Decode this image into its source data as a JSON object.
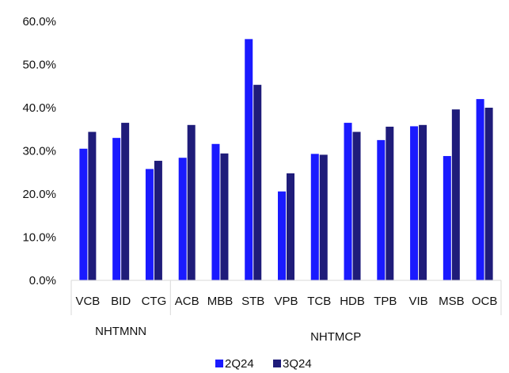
{
  "chart_data": {
    "type": "bar",
    "title": "",
    "xlabel": "",
    "ylabel": "",
    "ylim": [
      0,
      0.6
    ],
    "yticks": [
      "0.0%",
      "10.0%",
      "20.0%",
      "30.0%",
      "40.0%",
      "50.0%",
      "60.0%"
    ],
    "categories": [
      "VCB",
      "BID",
      "CTG",
      "ACB",
      "MBB",
      "STB",
      "VPB",
      "TCB",
      "HDB",
      "TPB",
      "VIB",
      "MSB",
      "OCB"
    ],
    "groups": [
      {
        "label": "NHTMNN",
        "categories": [
          "VCB",
          "BID",
          "CTG"
        ]
      },
      {
        "label": "NHTMCP",
        "categories": [
          "ACB",
          "MBB",
          "STB",
          "VPB",
          "TCB",
          "HDB",
          "TPB",
          "VIB",
          "MSB",
          "OCB"
        ]
      }
    ],
    "series": [
      {
        "name": "2Q24",
        "color": "#1a1aff",
        "values": [
          0.305,
          0.33,
          0.258,
          0.284,
          0.316,
          0.559,
          0.206,
          0.293,
          0.365,
          0.325,
          0.357,
          0.288,
          0.42
        ]
      },
      {
        "name": "3Q24",
        "color": "#1f1c7a",
        "values": [
          0.344,
          0.365,
          0.277,
          0.36,
          0.294,
          0.453,
          0.248,
          0.291,
          0.344,
          0.356,
          0.36,
          0.396,
          0.4
        ]
      }
    ],
    "grid": false,
    "legend_position": "bottom"
  }
}
